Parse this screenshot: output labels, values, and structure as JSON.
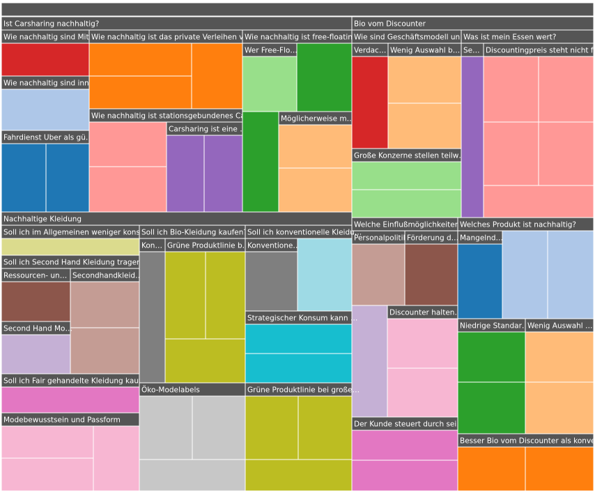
{
  "chart_data": {
    "type": "treemap",
    "title": "",
    "colors": {
      "header": "#555555",
      "red": "#d62728",
      "orange": "#ff7f0e",
      "lightblue": "#aec7e8",
      "blue": "#1f77b4",
      "salmon": "#ff9896",
      "purple": "#9467bd",
      "lightgreen": "#98df8a",
      "green": "#2ca02c",
      "peach": "#ffbb78",
      "olive": "#dbdb8d",
      "brown": "#8c564b",
      "rosybrown": "#c49c94",
      "lavender": "#c5b0d5",
      "pink": "#e377c2",
      "lightpink": "#f7b6d2",
      "gray": "#7f7f7f",
      "lightgray": "#c7c7c7",
      "yellowgreen": "#bcbd22",
      "cyan": "#17becf",
      "lightcyan": "#9edae5"
    },
    "groups": [
      {
        "label": "Ist Carsharing nachhaltig?",
        "subgroups": [
          {
            "label": "Wie nachhaltig sind Mit…",
            "color": "red",
            "leaves": 1
          },
          {
            "label": "Wie nachhaltig ist das private Verleihen vo…",
            "color": "orange",
            "leaves": 3
          },
          {
            "label": "Wie nachhaltig ist free-floatin…",
            "children": [
              {
                "label": "Wer Free-Flo…",
                "color": "lightgreen",
                "leaves": 1
              },
              {
                "label": "",
                "color": "green",
                "leaves": 2
              },
              {
                "label": "Möglicherweise m…",
                "color": "peach",
                "leaves": 2
              }
            ]
          },
          {
            "label": "Wie nachhaltig sind inn…",
            "color": "lightblue",
            "leaves": 1
          },
          {
            "label": "Wie nachhaltig ist stationsgebundenes Car…",
            "color": "salmon",
            "leaves": 2,
            "children": [
              {
                "label": "Carsharing ist eine …",
                "color": "purple",
                "leaves": 2
              }
            ]
          },
          {
            "label": "Fahrdienst Uber als gü…",
            "color": "blue",
            "leaves": 2
          }
        ]
      },
      {
        "label": "Bio vom Discounter",
        "subgroups": [
          {
            "label": "Wie sind Geschäftsmodell un…",
            "children": [
              {
                "label": "Verdac…",
                "color": "red",
                "leaves": 1
              },
              {
                "label": "Wenig Auswahl b…",
                "color": "peach",
                "leaves": 2
              },
              {
                "label": "Große Konzerne stellen teilw…",
                "color": "lightgreen",
                "leaves": 2
              }
            ]
          },
          {
            "label": "Was ist mein Essen wert?",
            "children": [
              {
                "label": "Se…",
                "color": "purple",
                "leaves": 1
              },
              {
                "label": "Discountingpreis steht nicht f…",
                "color": "salmon",
                "leaves": 5
              }
            ]
          },
          {
            "label": "Welche Einflußmöglichkeiten…",
            "children": [
              {
                "label": "Personalpolitik",
                "color": "rosybrown",
                "leaves": 1
              },
              {
                "label": "Förderung d…",
                "color": "brown",
                "leaves": 1
              },
              {
                "label": "",
                "color": "lavender",
                "leaves": 1
              },
              {
                "label": "Discounter halten…",
                "color": "lightpink",
                "leaves": 2
              },
              {
                "label": "Der Kunde steuert durch sei…",
                "color": "pink",
                "leaves": 2
              }
            ]
          },
          {
            "label": "Welches Produkt ist nachhaltig?",
            "children": [
              {
                "label": "Mangelnd…",
                "color": "blue",
                "leaves": 1
              },
              {
                "label": "",
                "color": "lightblue",
                "leaves": 2
              },
              {
                "label": "Niedrige Standar…",
                "color": "green",
                "leaves": 2
              },
              {
                "label": "Wenig Auswahl …",
                "color": "peach",
                "leaves": 2
              },
              {
                "label": "Besser Bio vom Discounter als konve…",
                "color": "orange",
                "leaves": 2
              }
            ]
          }
        ]
      },
      {
        "label": "Nachhaltige Kleidung",
        "subgroups": [
          {
            "label": "Soll ich im Allgemeinen weniger kons…",
            "color": "olive",
            "leaves": 1
          },
          {
            "label": "Soll ich Second Hand Kleidung tragen?",
            "children": [
              {
                "label": "Ressourcen- un…",
                "color": "brown",
                "leaves": 1
              },
              {
                "label": "Secondhandkleid…",
                "color": "rosybrown",
                "leaves": 2
              },
              {
                "label": "Second Hand Mo…",
                "color": "lavender",
                "leaves": 1
              }
            ]
          },
          {
            "label": "Soll ich Fair gehandelte Kleidung kauf…",
            "color": "pink",
            "leaves": 1
          },
          {
            "label": "Modebewusstsein und Passform",
            "color": "lightpink",
            "leaves": 3
          },
          {
            "label": "Soll ich Bio-Kleidung kaufen?",
            "children": [
              {
                "label": "Kon…",
                "color": "gray",
                "leaves": 1
              },
              {
                "label": "Grüne Produktlinie b…",
                "color": "yellowgreen",
                "leaves": 3
              }
            ]
          },
          {
            "label": "Öko-Modelabels",
            "color": "lightgray",
            "leaves": 3
          },
          {
            "label": "Soll ich konventionelle Kleidu…",
            "children": [
              {
                "label": "Konventione…",
                "color": "gray",
                "leaves": 1
              },
              {
                "label": "",
                "color": "lightcyan",
                "leaves": 1
              },
              {
                "label": "Strategischer Konsum kann …",
                "color": "cyan",
                "leaves": 2
              }
            ]
          },
          {
            "label": "Grüne Produktlinie bei große…",
            "color": "yellowgreen",
            "leaves": 3
          }
        ]
      }
    ]
  }
}
